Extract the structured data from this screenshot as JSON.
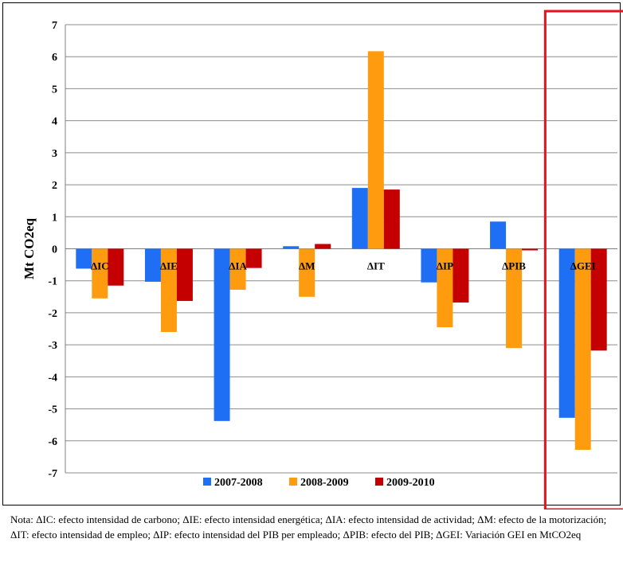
{
  "chart_data": {
    "type": "bar",
    "ylabel": "Mt CO2eq",
    "xlabel": "",
    "ylim": [
      -7,
      7
    ],
    "ytick_step": 1,
    "grid": true,
    "legend_position": "bottom",
    "categories": [
      "ΔIC",
      "ΔIE",
      "ΔIA",
      "ΔM",
      "ΔIT",
      "ΔIP",
      "ΔPIB",
      "ΔGEI"
    ],
    "series": [
      {
        "name": "2007-2008",
        "color": "#1f6ff5",
        "values": [
          -0.62,
          -1.03,
          -5.38,
          0.08,
          1.9,
          -1.05,
          0.85,
          -5.28
        ]
      },
      {
        "name": "2008-2009",
        "color": "#ff9b0f",
        "values": [
          -1.55,
          -2.6,
          -1.28,
          -1.5,
          6.17,
          -2.45,
          -3.1,
          -6.28
        ]
      },
      {
        "name": "2009-2010",
        "color": "#c40000",
        "values": [
          -1.15,
          -1.63,
          -0.6,
          0.15,
          1.85,
          -1.68,
          -0.05,
          -3.18
        ]
      }
    ],
    "highlight_category": "ΔGEI",
    "highlight_color": "#e8131b"
  },
  "note": {
    "text": "Nota: ΔIC: efecto intensidad de carbono; ΔIE: efecto intensidad energética; ΔIA: efecto intensidad de actividad; ΔM: efecto de la motorización; ΔIT: efecto intensidad de empleo; ΔIP: efecto intensidad del PIB per empleado; ΔPIB: efecto del PIB; ΔGEI: Variación GEI en MtCO2eq"
  }
}
